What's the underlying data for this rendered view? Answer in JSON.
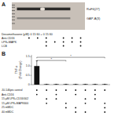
{
  "chart_data": {
    "type": "bar",
    "panel_labels": [
      "A",
      "B"
    ],
    "gel_annotations": [
      "RaF6(27)",
      "GAP-A(3)"
    ],
    "gel_rows": [
      {
        "label": "Dexamethasone (μM): 0  15 60  + 0  15 60",
        "dots": []
      },
      {
        "label": "Anti-CD16",
        "dots": [
          1,
          2,
          3,
          5,
          6,
          7
        ]
      },
      {
        "label": "LPS+MAPK",
        "dots": [
          3,
          4,
          5,
          6,
          7
        ]
      },
      {
        "label": "LCB",
        "dots": [
          3,
          5,
          7
        ]
      }
    ],
    "ylabel": "TNF-α\n(Fold Change)",
    "categories": [
      null,
      null,
      null,
      null,
      null,
      null,
      null,
      null
    ],
    "values": [
      1.0,
      0.02,
      0.02,
      0.02,
      0.02,
      0.02,
      0.02,
      0.02
    ],
    "errors": [
      0.28,
      0.005,
      0.005,
      0.005,
      0.005,
      0.005,
      0.005,
      0.005
    ],
    "color": "#111111",
    "ylim": [
      0,
      1.6
    ],
    "yticks": [
      0,
      0.5,
      {
        "value": 1.0,
        "label": "1.0"
      },
      1.5
    ],
    "brackets": [
      {
        "x1": 0,
        "x2": 7,
        "y": 1.47,
        "label": "*"
      },
      {
        "x1": 0,
        "x2": 3,
        "y": 1.3,
        "label": "*"
      }
    ],
    "condition_rows": [
      {
        "label": "JU-146pts control",
        "dots": [
          0,
          1,
          2,
          3,
          4,
          5,
          6,
          7
        ]
      },
      {
        "label": "Anti-CD16",
        "dots": [
          0,
          2,
          4,
          6
        ]
      },
      {
        "label": "15 μM LPS+CD16/002",
        "dots": [
          1,
          2,
          5,
          6
        ]
      },
      {
        "label": "15 μM LPS+MAPK600",
        "dots": [
          1,
          3,
          5,
          7
        ]
      },
      {
        "label": "25 mMDC",
        "dots": [
          3,
          4,
          7
        ]
      },
      {
        "label": "40 mMDC",
        "dots": [
          4,
          5,
          7
        ]
      }
    ]
  }
}
